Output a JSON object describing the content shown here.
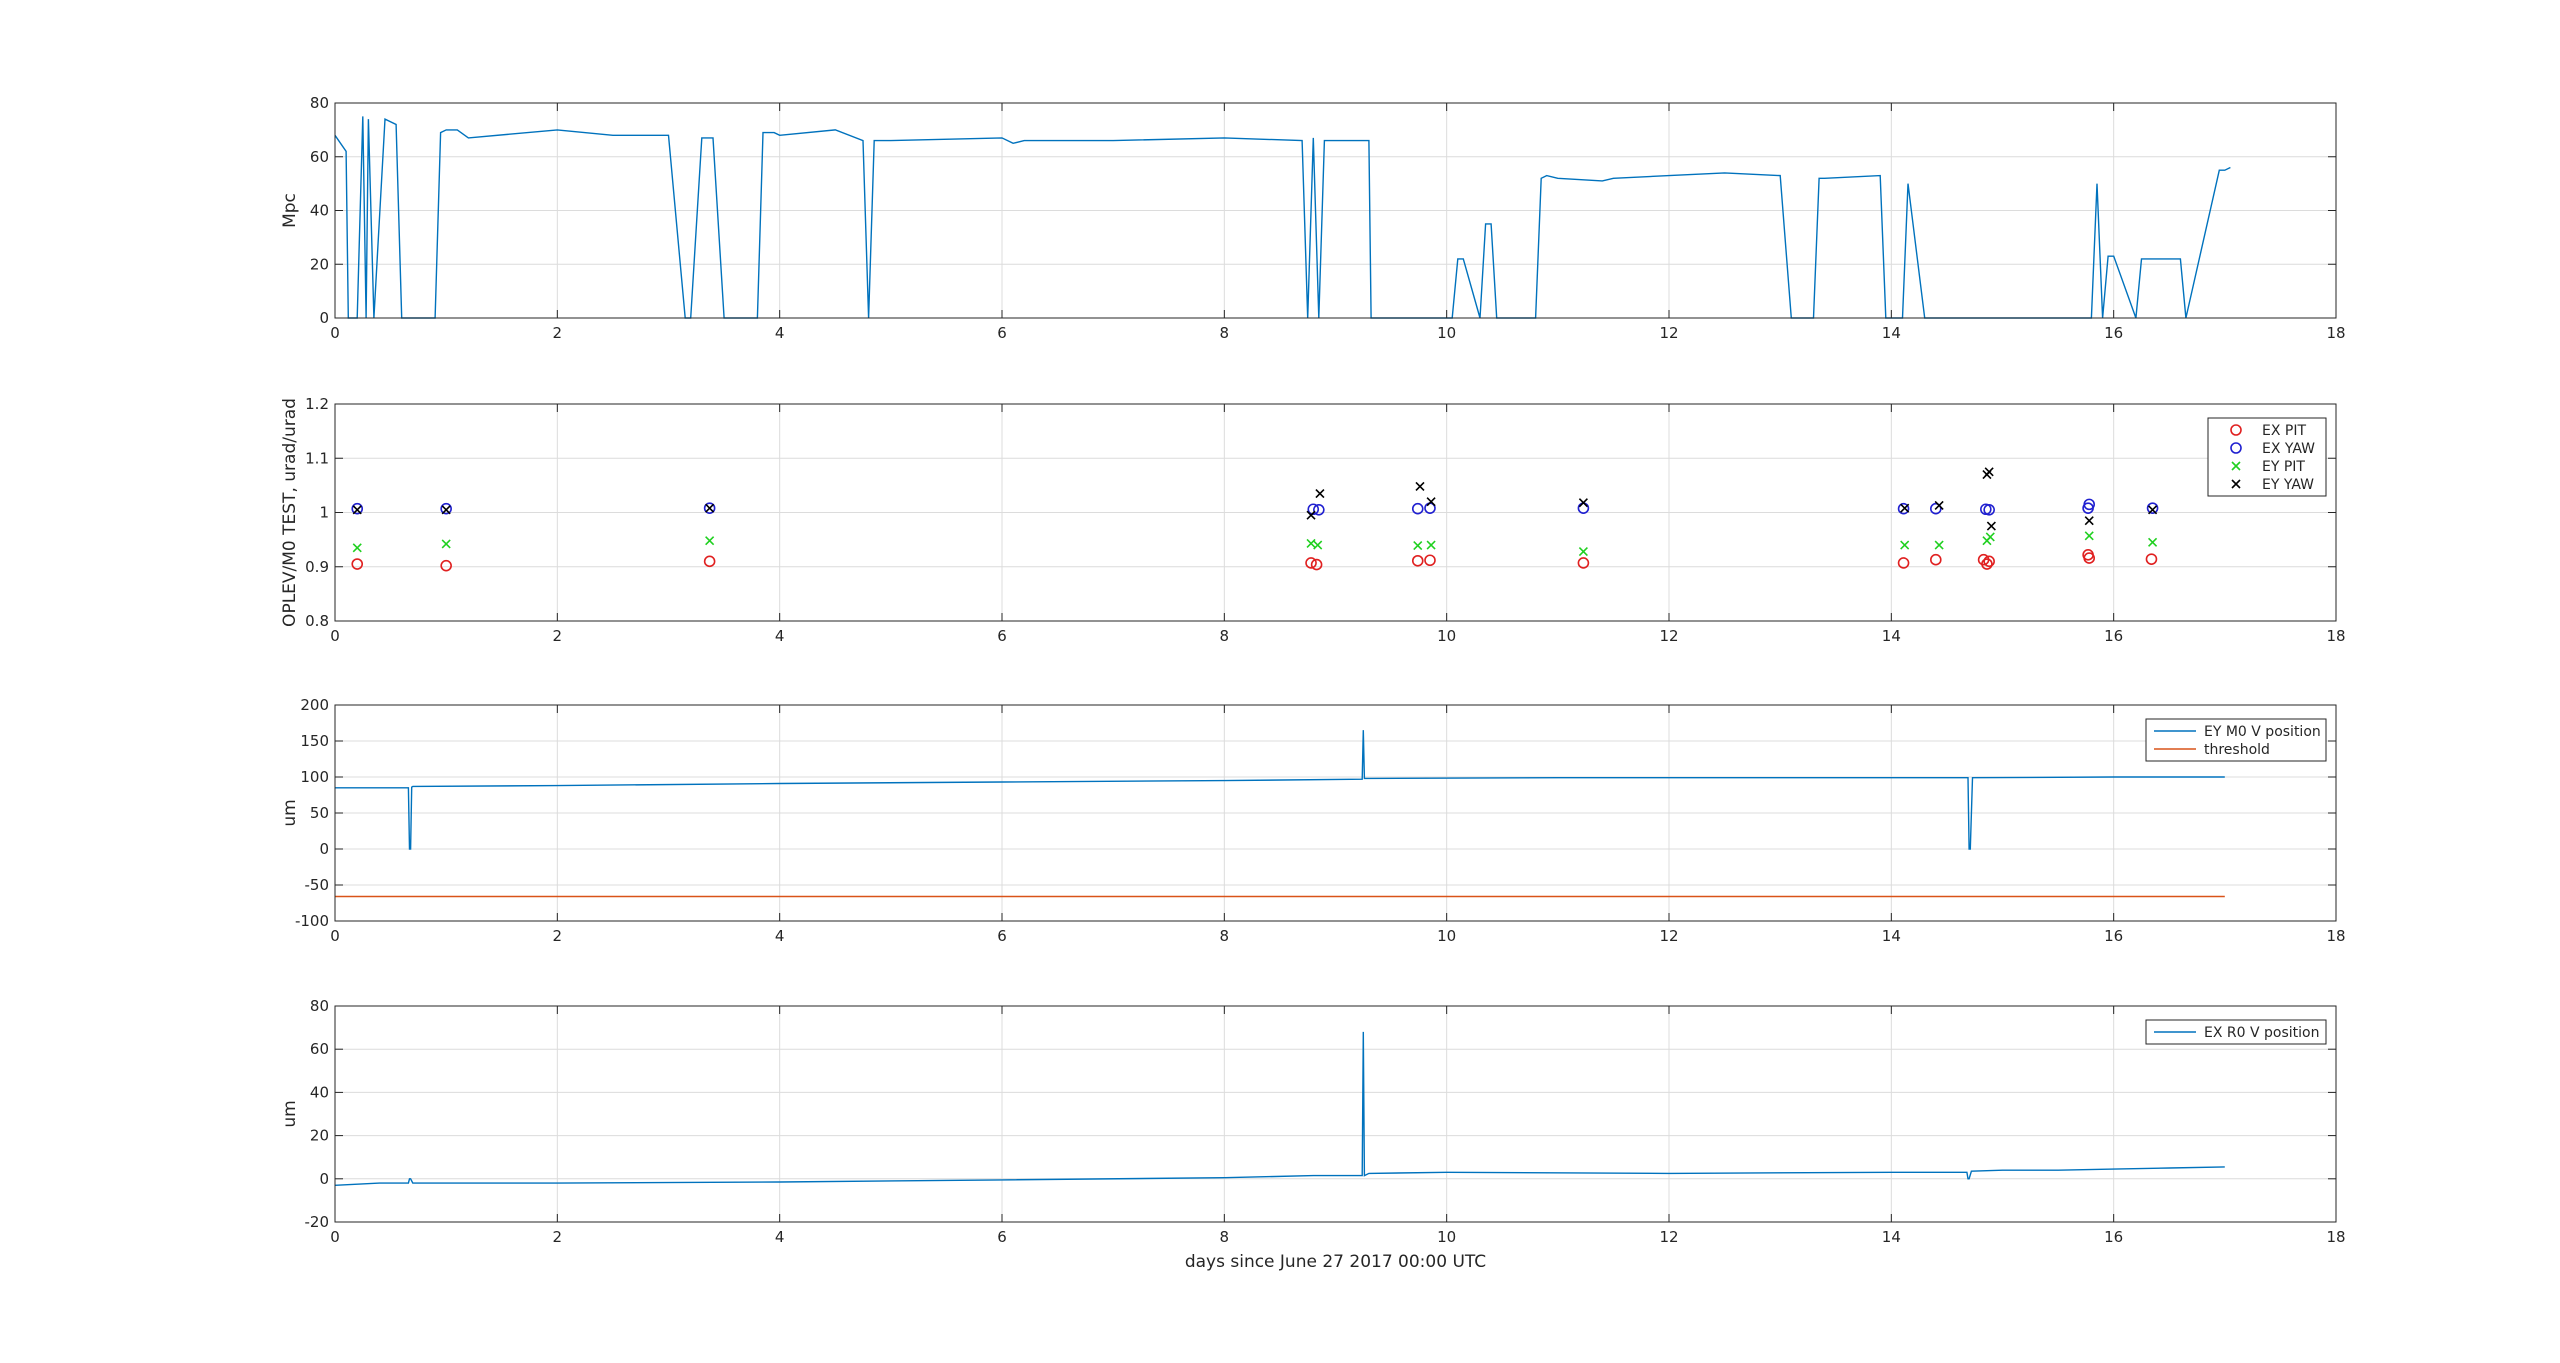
{
  "chart_data": [
    {
      "type": "line",
      "ylabel": "Mpc",
      "xlabel": "",
      "xlim": [
        0,
        18
      ],
      "ylim": [
        0,
        80
      ],
      "xticks": [
        0,
        2,
        4,
        6,
        8,
        10,
        12,
        14,
        16,
        18
      ],
      "yticks": [
        0,
        20,
        40,
        60,
        80
      ],
      "grid": true,
      "color": "#0072BD",
      "series": [
        {
          "x": [
            0,
            0.1,
            0.12,
            0.2,
            0.25,
            0.28,
            0.3,
            0.35,
            0.45,
            0.55,
            0.6,
            0.9,
            0.95,
            1.0,
            1.1,
            1.2,
            2.0,
            2.5,
            3.0,
            3.15,
            3.2,
            3.3,
            3.4,
            3.5,
            3.8,
            3.85,
            3.95,
            4.0,
            4.5,
            4.75,
            4.8,
            4.85,
            5.0,
            6.0,
            6.1,
            6.2,
            7.0,
            8.0,
            8.7,
            8.75,
            8.8,
            8.85,
            8.9,
            9.3,
            9.32,
            9.5,
            10.0,
            10.05,
            10.1,
            10.15,
            10.3,
            10.35,
            10.4,
            10.45,
            10.8,
            10.85,
            10.9,
            11.0,
            11.4,
            11.5,
            12.0,
            12.5,
            13.0,
            13.1,
            13.2,
            13.3,
            13.35,
            13.4,
            13.9,
            13.95,
            14.1,
            14.15,
            14.3,
            14.35,
            15.0,
            15.5,
            15.8,
            15.85,
            15.9,
            15.95,
            16.0,
            16.2,
            16.25,
            16.6,
            16.65,
            16.95,
            17.0,
            17.05
          ],
          "y": [
            68,
            62,
            0,
            0,
            75,
            0,
            74,
            0,
            74,
            72,
            0,
            0,
            69,
            70,
            70,
            67,
            70,
            68,
            68,
            0,
            0,
            67,
            67,
            0,
            0,
            69,
            69,
            68,
            70,
            66,
            0,
            66,
            66,
            67,
            65,
            66,
            66,
            67,
            66,
            0,
            67,
            0,
            66,
            66,
            0,
            0,
            0,
            0,
            22,
            22,
            0,
            35,
            35,
            0,
            0,
            52,
            53,
            52,
            51,
            52,
            53,
            54,
            53,
            0,
            0,
            0,
            52,
            52,
            53,
            0,
            0,
            50,
            0,
            0,
            0,
            0,
            0,
            50,
            0,
            23,
            23,
            0,
            22,
            22,
            0,
            55,
            55,
            56
          ]
        }
      ]
    },
    {
      "type": "scatter",
      "ylabel": "OPLEV/M0 TEST, urad/urad",
      "xlabel": "",
      "xlim": [
        0,
        18
      ],
      "ylim": [
        0.8,
        1.2
      ],
      "xticks": [
        0,
        2,
        4,
        6,
        8,
        10,
        12,
        14,
        16,
        18
      ],
      "yticks": [
        0.8,
        0.9,
        1,
        1.1,
        1.2
      ],
      "grid": true,
      "legend": "top-right",
      "series": [
        {
          "name": "EX PIT",
          "marker": "o",
          "color": "#e02020",
          "x": [
            0.2,
            1.0,
            3.37,
            8.78,
            8.83,
            9.74,
            9.85,
            11.23,
            14.11,
            14.4,
            14.83,
            14.86,
            14.88,
            15.77,
            15.78,
            16.34
          ],
          "y": [
            0.905,
            0.902,
            0.91,
            0.907,
            0.904,
            0.911,
            0.912,
            0.907,
            0.907,
            0.913,
            0.913,
            0.905,
            0.91,
            0.922,
            0.916,
            0.914
          ]
        },
        {
          "name": "EX YAW",
          "marker": "o",
          "color": "#2020d0",
          "x": [
            0.2,
            1.0,
            3.37,
            8.8,
            8.85,
            9.74,
            9.85,
            11.23,
            14.11,
            14.4,
            14.85,
            14.88,
            15.77,
            15.78,
            16.35
          ],
          "y": [
            1.007,
            1.007,
            1.008,
            1.006,
            1.005,
            1.007,
            1.008,
            1.008,
            1.007,
            1.007,
            1.006,
            1.005,
            1.008,
            1.015,
            1.008
          ]
        },
        {
          "name": "EY PIT",
          "marker": "x",
          "color": "#20d020",
          "x": [
            0.2,
            1.0,
            3.37,
            8.78,
            8.84,
            9.74,
            9.86,
            11.23,
            14.12,
            14.43,
            14.86,
            14.89,
            15.78,
            16.35
          ],
          "y": [
            0.935,
            0.942,
            0.948,
            0.943,
            0.94,
            0.939,
            0.94,
            0.928,
            0.94,
            0.94,
            0.948,
            0.955,
            0.957,
            0.945
          ]
        },
        {
          "name": "EY YAW",
          "marker": "x",
          "color": "#000000",
          "x": [
            0.2,
            1.0,
            3.37,
            8.78,
            8.86,
            9.76,
            9.86,
            11.23,
            14.12,
            14.43,
            14.86,
            14.88,
            14.9,
            15.78,
            16.35
          ],
          "y": [
            1.005,
            1.005,
            1.008,
            0.995,
            1.035,
            1.048,
            1.02,
            1.018,
            1.008,
            1.013,
            1.07,
            1.075,
            0.975,
            0.985,
            1.005
          ]
        }
      ]
    },
    {
      "type": "line",
      "ylabel": "um",
      "xlabel": "",
      "xlim": [
        0,
        18
      ],
      "ylim": [
        -100,
        200
      ],
      "xticks": [
        0,
        2,
        4,
        6,
        8,
        10,
        12,
        14,
        16,
        18
      ],
      "yticks": [
        -100,
        -50,
        0,
        50,
        100,
        150,
        200
      ],
      "grid": true,
      "legend": "top-right",
      "series": [
        {
          "name": "EY M0 V position",
          "color": "#0072BD",
          "x": [
            0,
            0.66,
            0.67,
            0.68,
            0.69,
            0.7,
            2.0,
            4.0,
            6.0,
            8.0,
            9.24,
            9.25,
            9.26,
            9.3,
            11.0,
            13.0,
            14.69,
            14.7,
            14.71,
            14.73,
            16.0,
            17.0
          ],
          "y": [
            85,
            85,
            0,
            0,
            86,
            87,
            88,
            91,
            93,
            95,
            97,
            165,
            98,
            98,
            99,
            99,
            99,
            0,
            0,
            99,
            100,
            100
          ]
        },
        {
          "name": "threshold",
          "color": "#D95319",
          "x": [
            0,
            17.0
          ],
          "y": [
            -66,
            -66
          ]
        }
      ]
    },
    {
      "type": "line",
      "ylabel": "um",
      "xlabel": "days since June 27 2017 00:00 UTC",
      "xlim": [
        0,
        18
      ],
      "ylim": [
        -20,
        80
      ],
      "xticks": [
        0,
        2,
        4,
        6,
        8,
        10,
        12,
        14,
        16,
        18
      ],
      "yticks": [
        -20,
        0,
        20,
        40,
        60,
        80
      ],
      "grid": true,
      "legend": "top-right",
      "series": [
        {
          "name": "EX R0 V position",
          "color": "#0072BD",
          "x": [
            0,
            0.4,
            0.66,
            0.67,
            0.68,
            0.7,
            2.0,
            4.0,
            6.0,
            8.0,
            8.8,
            9.24,
            9.25,
            9.26,
            9.3,
            10.0,
            12.0,
            14.0,
            14.68,
            14.69,
            14.7,
            14.72,
            15.0,
            15.5,
            16.0,
            16.5,
            17.0
          ],
          "y": [
            -3,
            -2,
            -2,
            0,
            0,
            -2,
            -2,
            -1.5,
            -0.5,
            0.5,
            1.5,
            1.5,
            68,
            1.5,
            2.5,
            3,
            2.5,
            3,
            3,
            0,
            0,
            3.5,
            4,
            4,
            4.5,
            5,
            5.5
          ]
        }
      ]
    }
  ]
}
